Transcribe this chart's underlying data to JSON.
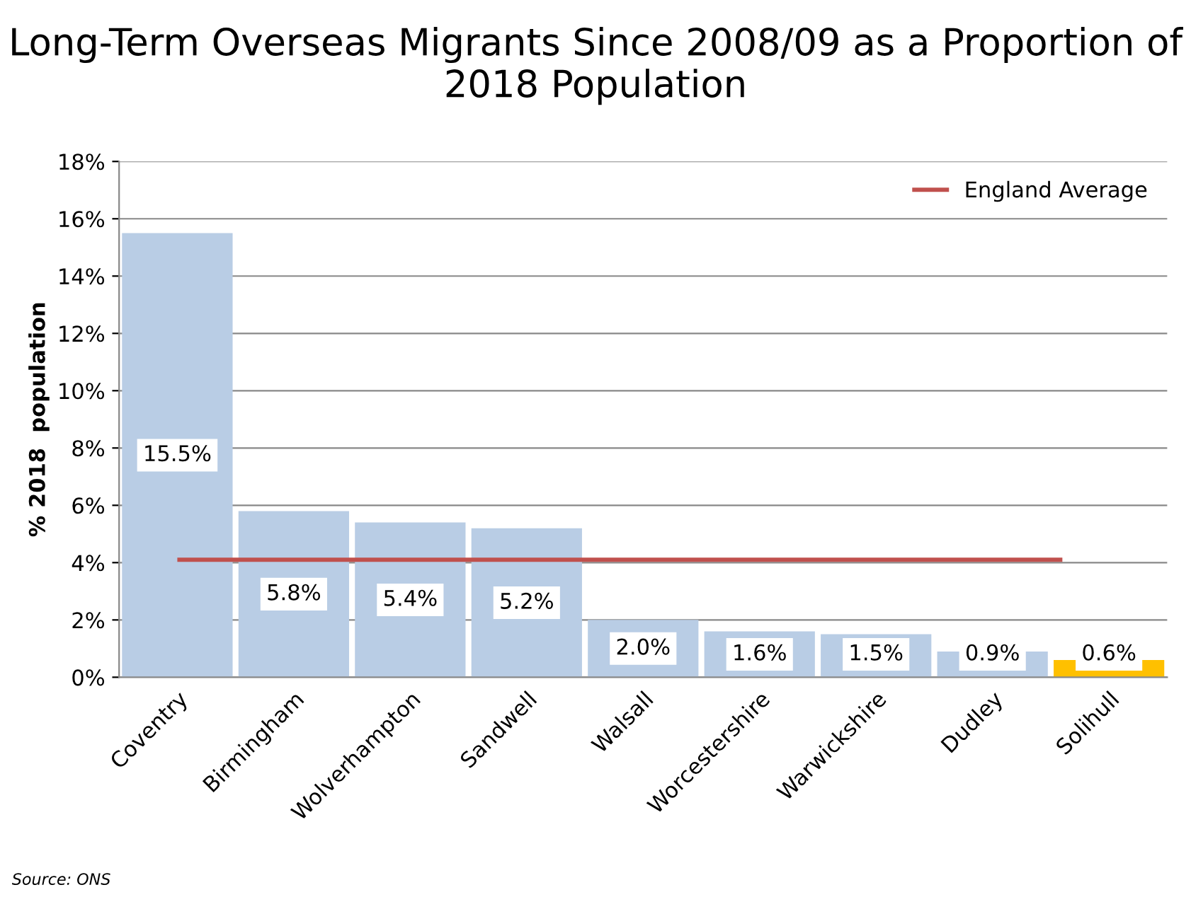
{
  "chart_data": {
    "type": "bar",
    "title": "Long-Term Overseas Migrants Since 2008/09 as a Proportion of 2018 Population",
    "ylabel": "% 2018  population",
    "categories": [
      "Coventry",
      "Birmingham",
      "Wolverhampton",
      "Sandwell",
      "Walsall",
      "Worcestershire",
      "Warwickshire",
      "Dudley",
      "Solihull"
    ],
    "values": [
      15.5,
      5.8,
      5.4,
      5.2,
      2.0,
      1.6,
      1.5,
      0.9,
      0.6
    ],
    "colors": [
      "#b9cde5",
      "#b9cde5",
      "#b9cde5",
      "#b9cde5",
      "#b9cde5",
      "#b9cde5",
      "#b9cde5",
      "#b9cde5",
      "#ffc000"
    ],
    "value_labels": [
      "15.5%",
      "5.8%",
      "5.4%",
      "5.2%",
      "2.0%",
      "1.6%",
      "1.5%",
      "0.9%",
      "0.6%"
    ],
    "ylim": [
      0,
      18
    ],
    "yticks": [
      {
        "value": 0,
        "label": "0%"
      },
      {
        "value": 2,
        "label": "2%"
      },
      {
        "value": 4,
        "label": "4%"
      },
      {
        "value": 6,
        "label": "6%"
      },
      {
        "value": 8,
        "label": "8%"
      },
      {
        "value": 10,
        "label": "10%"
      },
      {
        "value": 12,
        "label": "12%"
      },
      {
        "value": 14,
        "label": "14%"
      },
      {
        "value": 16,
        "label": "16%"
      },
      {
        "value": 18,
        "label": "18%"
      }
    ],
    "ref_lines": [
      {
        "axis": "y",
        "value": 4.1,
        "label": "England Average",
        "color": "#c0504d"
      }
    ],
    "grid": "y",
    "legend": "top right",
    "annotations": [
      "Source: ONS"
    ]
  }
}
